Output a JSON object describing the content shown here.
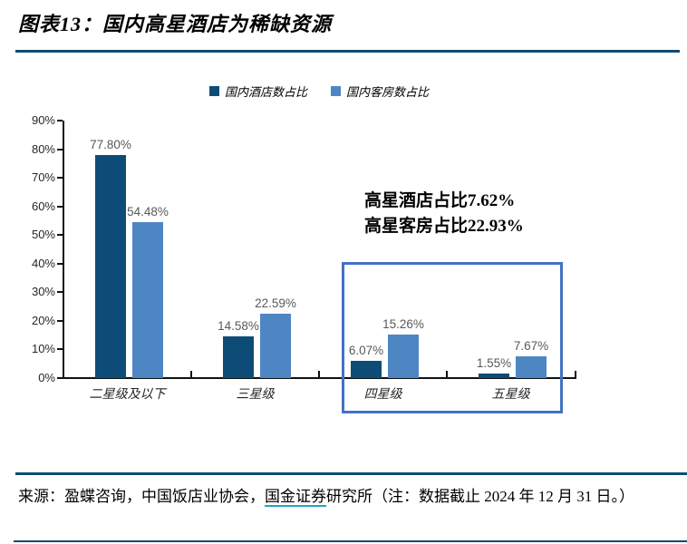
{
  "header": {
    "title": "图表13：国内高星酒店为稀缺资源"
  },
  "chart_data": {
    "type": "bar",
    "title": "国内高星酒店为稀缺资源",
    "categories": [
      "二星级及以下",
      "三星级",
      "四星级",
      "五星级"
    ],
    "series": [
      {
        "name": "国内酒店数占比",
        "color": "#0e4c78",
        "values": [
          77.8,
          14.58,
          6.07,
          1.55
        ],
        "labels": [
          "77.80%",
          "14.58%",
          "6.07%",
          "1.55%"
        ]
      },
      {
        "name": "国内客房数占比",
        "color": "#4e86c4",
        "values": [
          54.48,
          22.59,
          15.26,
          7.67
        ],
        "labels": [
          "54.48%",
          "22.59%",
          "15.26%",
          "7.67%"
        ]
      }
    ],
    "y_axis": {
      "min": 0,
      "max": 90,
      "step": 10,
      "tick_labels": [
        "0%",
        "10%",
        "20%",
        "30%",
        "40%",
        "50%",
        "60%",
        "70%",
        "80%",
        "90%"
      ]
    },
    "grid": false,
    "legend_position": "top",
    "annotation": {
      "lines": [
        "高星酒店占比7.62%",
        "高星客房占比22.93%"
      ],
      "highlight_categories": [
        "四星级",
        "五星级"
      ],
      "box_color": "#4472c4"
    }
  },
  "footer": {
    "source_prefix": "来源：盈蝶咨询，中国饭店业协会，",
    "source_link": "国金证券",
    "source_suffix": "研究所（注：数据截止 2024 年 12 月 31 日。）",
    "link_underline_color": "#1ba7c0"
  },
  "colors": {
    "rule": "#0e4c75",
    "bar_label": "#595959"
  }
}
